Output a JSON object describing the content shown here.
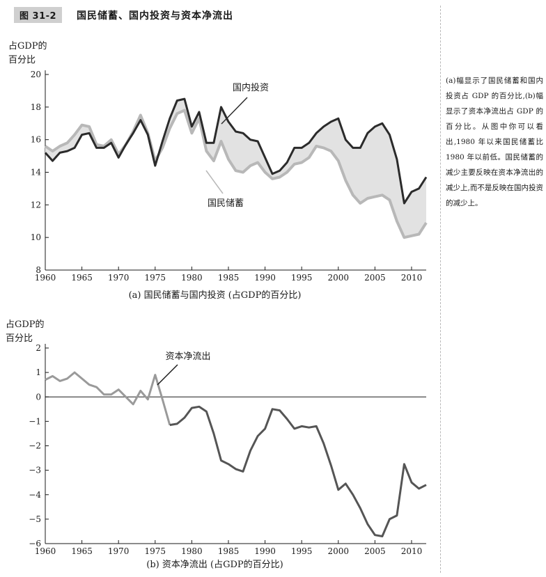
{
  "figure": {
    "label": "图 31-2",
    "title": "国民储蓄、国内投资与资本净流出",
    "caption": "(a)幅显示了国民储蓄和国内投资占 GDP 的百分比,(b)幅显示了资本净流出占 GDP 的百分比。从图中你可以看出,1980 年以来国民储蓄比 1980 年以前低。国民储蓄的减少主要反映在资本净流出的减少上,而不是反映在国内投资的减少上。"
  },
  "colors": {
    "investment": "#2b2b2b",
    "saving": "#b8b8b8",
    "band": "#e2e2e2",
    "axis": "#1a1a1a",
    "capital": "#555555"
  },
  "chart_data": [
    {
      "type": "line",
      "title": "(a) 国民储蓄与国内投资 (占GDP的百分比)",
      "ylabel_lines": [
        "占GDP的",
        "百分比"
      ],
      "xlim": [
        1960,
        2012
      ],
      "ylim": [
        8,
        20
      ],
      "xticks": [
        1960,
        1965,
        1970,
        1975,
        1980,
        1985,
        1990,
        1995,
        2000,
        2005,
        2010
      ],
      "yticks": [
        8,
        10,
        12,
        14,
        16,
        18,
        20
      ],
      "x": [
        1960,
        1961,
        1962,
        1963,
        1964,
        1965,
        1966,
        1967,
        1968,
        1969,
        1970,
        1971,
        1972,
        1973,
        1974,
        1975,
        1976,
        1977,
        1978,
        1979,
        1980,
        1981,
        1982,
        1983,
        1984,
        1985,
        1986,
        1987,
        1988,
        1989,
        1990,
        1991,
        1992,
        1993,
        1994,
        1995,
        1996,
        1997,
        1998,
        1999,
        2000,
        2001,
        2002,
        2003,
        2004,
        2005,
        2006,
        2007,
        2008,
        2009,
        2010,
        2011,
        2012
      ],
      "series": [
        {
          "name": "国内投资",
          "values": [
            15.2,
            14.7,
            15.2,
            15.3,
            15.5,
            16.3,
            16.4,
            15.5,
            15.5,
            15.8,
            14.9,
            15.7,
            16.4,
            17.2,
            16.3,
            14.4,
            15.9,
            17.3,
            18.4,
            18.5,
            16.8,
            17.7,
            15.8,
            15.8,
            18.0,
            17.1,
            16.5,
            16.4,
            16.0,
            15.9,
            14.9,
            13.9,
            14.1,
            14.6,
            15.5,
            15.5,
            15.8,
            16.4,
            16.8,
            17.1,
            17.3,
            16.0,
            15.5,
            15.5,
            16.4,
            16.8,
            17.0,
            16.3,
            14.8,
            12.1,
            12.8,
            13.0,
            13.7
          ]
        },
        {
          "name": "国民储蓄",
          "values": [
            15.6,
            15.3,
            15.6,
            15.8,
            16.3,
            16.9,
            16.8,
            15.7,
            15.6,
            16.0,
            15.1,
            15.7,
            16.5,
            17.5,
            16.4,
            14.7,
            15.5,
            16.7,
            17.6,
            17.8,
            16.4,
            17.3,
            15.3,
            14.7,
            15.9,
            14.8,
            14.1,
            14.0,
            14.4,
            14.6,
            14.0,
            13.6,
            13.7,
            14.0,
            14.5,
            14.6,
            14.9,
            15.6,
            15.5,
            15.3,
            14.7,
            13.5,
            12.6,
            12.1,
            12.4,
            12.5,
            12.6,
            12.3,
            11.0,
            10.0,
            10.1,
            10.2,
            10.9
          ]
        }
      ],
      "annotations": [
        "国内投资",
        "国民储蓄"
      ]
    },
    {
      "type": "line",
      "title": "(b) 资本净流出 (占GDP的百分比)",
      "ylabel_lines": [
        "占GDP的",
        "百分比"
      ],
      "xlim": [
        1960,
        2012
      ],
      "ylim": [
        -6,
        2
      ],
      "xticks": [
        1960,
        1965,
        1970,
        1975,
        1980,
        1985,
        1990,
        1995,
        2000,
        2005,
        2010
      ],
      "yticks": [
        -6,
        -5,
        -4,
        -3,
        -2,
        -1,
        0,
        1,
        2
      ],
      "x": [
        1960,
        1961,
        1962,
        1963,
        1964,
        1965,
        1966,
        1967,
        1968,
        1969,
        1970,
        1971,
        1972,
        1973,
        1974,
        1975,
        1976,
        1977,
        1978,
        1979,
        1980,
        1981,
        1982,
        1983,
        1984,
        1985,
        1986,
        1987,
        1988,
        1989,
        1990,
        1991,
        1992,
        1993,
        1994,
        1995,
        1996,
        1997,
        1998,
        1999,
        2000,
        2001,
        2002,
        2003,
        2004,
        2005,
        2006,
        2007,
        2008,
        2009,
        2010,
        2011,
        2012
      ],
      "series": [
        {
          "name": "资本净流出",
          "values": [
            0.7,
            0.85,
            0.65,
            0.75,
            1.0,
            0.75,
            0.5,
            0.4,
            0.1,
            0.1,
            0.3,
            0.0,
            -0.3,
            0.25,
            -0.1,
            0.9,
            -0.1,
            -1.15,
            -1.1,
            -0.85,
            -0.45,
            -0.4,
            -0.6,
            -1.5,
            -2.6,
            -2.75,
            -2.95,
            -3.05,
            -2.2,
            -1.6,
            -1.3,
            -0.5,
            -0.55,
            -0.9,
            -1.3,
            -1.2,
            -1.25,
            -1.2,
            -1.9,
            -2.8,
            -3.8,
            -3.55,
            -4.0,
            -4.55,
            -5.2,
            -5.65,
            -5.7,
            -5.0,
            -4.85,
            -2.75,
            -3.5,
            -3.75,
            -3.6
          ]
        }
      ],
      "annotations": [
        "资本净流出"
      ]
    }
  ]
}
